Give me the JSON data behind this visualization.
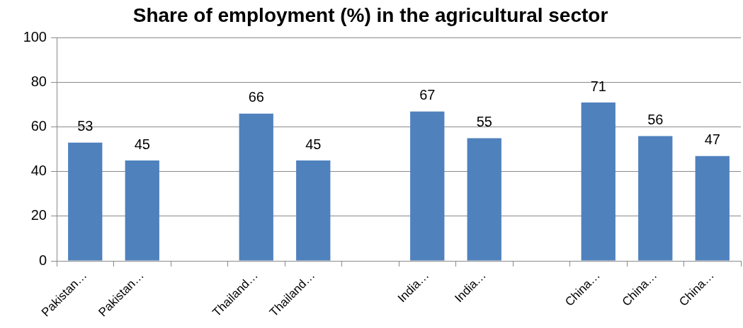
{
  "chart_data": {
    "type": "bar",
    "title": "Share of employment (%) in the agricultural sector",
    "categories": [
      "Pakistan…",
      "Pakistan…",
      null,
      "Thailand…",
      "Thailand…",
      null,
      "India…",
      "India…",
      null,
      "China…",
      "China…",
      "China…"
    ],
    "values": [
      53,
      45,
      null,
      66,
      45,
      null,
      67,
      55,
      null,
      71,
      56,
      47
    ],
    "color": "#4f81bd",
    "ylim": [
      0,
      100
    ],
    "yticks": [
      0,
      20,
      40,
      60,
      80,
      100
    ],
    "grid": "y",
    "data_labels": true
  }
}
